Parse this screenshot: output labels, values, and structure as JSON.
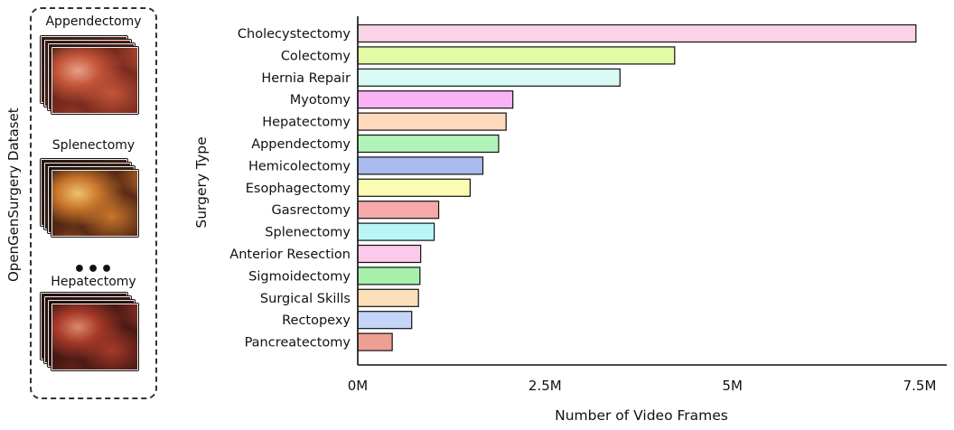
{
  "dataset_panel": {
    "title": "OpenGenSurgery Dataset",
    "samples": [
      {
        "label": "Appendectomy",
        "palette": [
          "#7a2a1e",
          "#c4553a",
          "#e8a088",
          "#3a1a12"
        ]
      },
      {
        "label": "Splenectomy",
        "palette": [
          "#5a2a14",
          "#c9772c",
          "#f0c070",
          "#2a150c"
        ]
      },
      {
        "label": "Hepatectomy",
        "palette": [
          "#4a1a14",
          "#a83a2a",
          "#d98a6a",
          "#2a0f0a"
        ]
      }
    ],
    "ellipsis": "•••"
  },
  "chart_data": {
    "type": "bar",
    "orientation": "horizontal",
    "categories": [
      "Cholecystectomy",
      "Colectomy",
      "Hernia Repair",
      "Myotomy",
      "Hepatectomy",
      "Appendectomy",
      "Hemicolectomy",
      "Esophagectomy",
      "Gasrectomy",
      "Splenectomy",
      "Anterior Resection",
      "Sigmoidectomy",
      "Surgical Skills",
      "Rectopexy",
      "Pancreatectomy"
    ],
    "values": [
      7.45,
      4.23,
      3.5,
      2.07,
      1.98,
      1.88,
      1.67,
      1.5,
      1.08,
      1.02,
      0.84,
      0.83,
      0.81,
      0.72,
      0.46
    ],
    "colors": [
      "#fbd3e6",
      "#e3fba5",
      "#d9fbf6",
      "#f9b3f4",
      "#fdd9bd",
      "#b2f3b9",
      "#a9bbef",
      "#fbfbb4",
      "#f7a8a8",
      "#b9f5f7",
      "#fbc9e9",
      "#a7f1ab",
      "#fde0b9",
      "#c3d6f7",
      "#ef9e92"
    ],
    "xlabel": "Number of Video Frames",
    "ylabel": "Surgery Type",
    "xlim": [
      0,
      7.5
    ],
    "xticks": [
      0,
      2.5,
      5,
      7.5
    ],
    "xtick_labels": [
      "0M",
      "2.5M",
      "5M",
      "7.5M"
    ],
    "grid": false,
    "unit": "M"
  }
}
